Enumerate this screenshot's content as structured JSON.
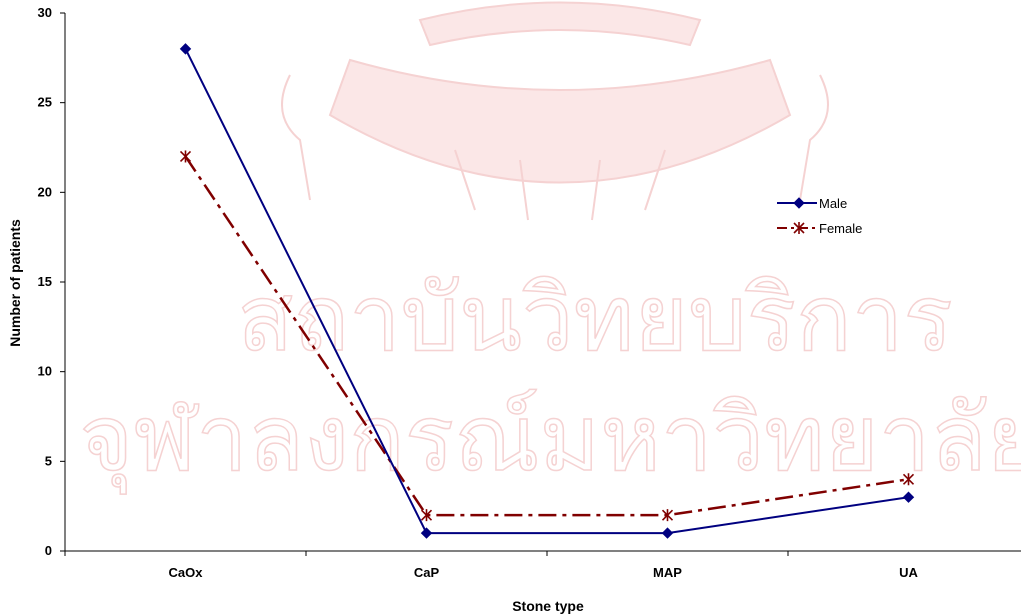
{
  "colors": {
    "male": "#000080",
    "female": "#800000",
    "axis": "#000000",
    "watermark": "#f5d2d2"
  },
  "watermark": {
    "line1": "สถาบันวิทยบริการ",
    "line2": "จุฬาลงกรณ์มหาวิทยาลัย"
  },
  "chart_data": {
    "type": "line",
    "categories": [
      "CaOx",
      "CaP",
      "MAP",
      "UA"
    ],
    "series": [
      {
        "name": "Male",
        "values": [
          28,
          1,
          1,
          3
        ],
        "color": "#000080",
        "marker": "diamond",
        "line_style": "solid"
      },
      {
        "name": "Female",
        "values": [
          22,
          2,
          2,
          4
        ],
        "color": "#800000",
        "marker": "asterisk",
        "line_style": "dash-dot"
      }
    ],
    "xlabel": "Stone type",
    "ylabel": "Number of patients",
    "ylim": [
      0,
      30
    ],
    "yticks": [
      0,
      5,
      10,
      15,
      20,
      25,
      30
    ],
    "grid": false,
    "legend_position": "right"
  }
}
